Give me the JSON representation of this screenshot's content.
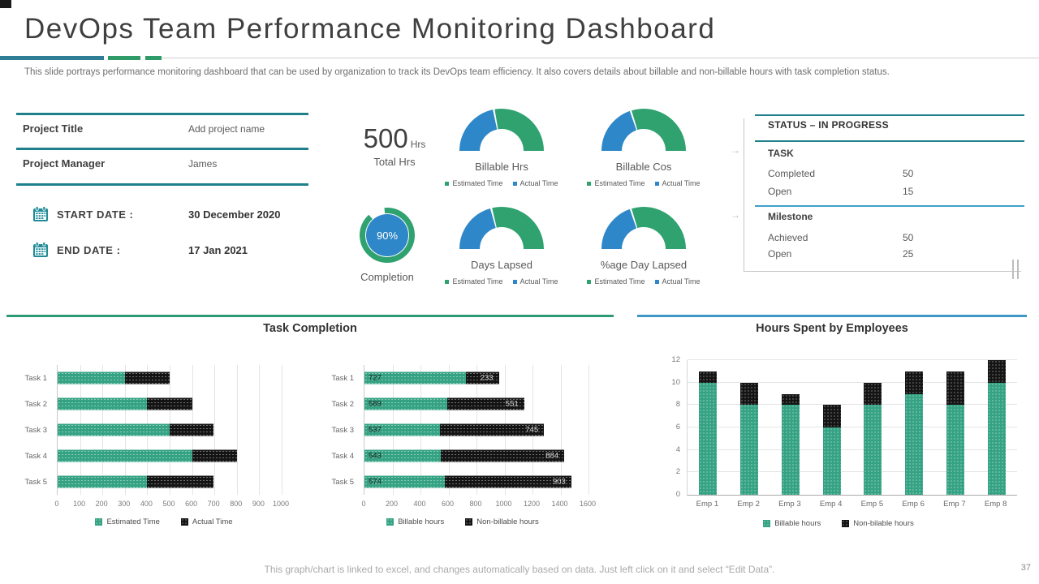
{
  "slide": {
    "title": "DevOps Team Performance Monitoring Dashboard",
    "subtitle": "This slide portrays performance  monitoring dashboard that can be used by organization to track its DevOps  team efficiency. It also covers details about billable and non-billable  hours with task completion status.",
    "footer_note": "This graph/chart is linked to excel, and changes automatically based on data. Just left click on it and select “Edit Data”.",
    "page_number": "37"
  },
  "colors": {
    "green": "#2fa26f",
    "blue": "#2e87c8",
    "teal_line": "#1f808c",
    "blue_line": "#3e9fc9",
    "bar_teal": "#35a383",
    "bar_black": "#141414"
  },
  "project_info": {
    "rows": [
      {
        "label": "Project Title",
        "value": "Add project name"
      },
      {
        "label": "Project Manager",
        "value": "James"
      }
    ],
    "dates": [
      {
        "label": "START DATE :",
        "value": "30 December 2020"
      },
      {
        "label": "END DATE :",
        "value": "17 Jan 2021"
      }
    ]
  },
  "totals": {
    "value": "500",
    "unit": "Hrs",
    "caption": "Total Hrs"
  },
  "completion_label": "Completion",
  "status_panel": {
    "title": "STATUS – IN PROGRESS",
    "sections": [
      {
        "heading": "TASK",
        "rows": [
          {
            "label": "Completed",
            "value": "50"
          },
          {
            "label": "Open",
            "value": "15"
          }
        ]
      },
      {
        "heading": "Milestone",
        "rows": [
          {
            "label": "Achieved",
            "value": "50"
          },
          {
            "label": "Open",
            "value": "25"
          }
        ]
      }
    ]
  },
  "section_titles": {
    "left": "Task Completion",
    "right": "Hours Spent by Employees"
  },
  "chart_data": [
    {
      "type": "half-donut",
      "label": "Billable Hrs",
      "segments": [
        {
          "name": "Actual Time",
          "pct": 44,
          "color": "blue"
        },
        {
          "name": "Estimated Time",
          "pct": 56,
          "color": "green"
        }
      ],
      "legend": [
        {
          "label": "Estimated Time",
          "color": "green"
        },
        {
          "label": "Actual Time",
          "color": "blue"
        }
      ]
    },
    {
      "type": "half-donut",
      "label": "Billable Cos",
      "segments": [
        {
          "name": "Actual Time",
          "pct": 40,
          "color": "blue"
        },
        {
          "name": "Estimated Time",
          "pct": 60,
          "color": "green"
        }
      ],
      "legend": [
        {
          "label": "Estimated Time",
          "color": "green"
        },
        {
          "label": "Actual Time",
          "color": "blue"
        }
      ]
    },
    {
      "type": "half-donut",
      "label": "Days Lapsed",
      "segments": [
        {
          "name": "Actual Time",
          "pct": 42,
          "color": "blue"
        },
        {
          "name": "Estimated Time",
          "pct": 58,
          "color": "green"
        }
      ],
      "legend": [
        {
          "label": "Estimated Time",
          "color": "green"
        },
        {
          "label": "Actual Time",
          "color": "blue"
        }
      ]
    },
    {
      "type": "half-donut",
      "label": "%age Day Lapsed",
      "segments": [
        {
          "name": "Actual Time",
          "pct": 40,
          "color": "blue"
        },
        {
          "name": "Estimated Time",
          "pct": 60,
          "color": "green"
        }
      ],
      "legend": [
        {
          "label": "Estimated Time",
          "color": "green"
        },
        {
          "label": "Actual Time",
          "color": "blue"
        }
      ]
    },
    {
      "type": "donut",
      "label": "Completion",
      "value": 90,
      "display": "90%"
    },
    {
      "type": "barh",
      "title": "Task Completion",
      "categories": [
        "Task 1",
        "Task 2",
        "Task 3",
        "Task 4",
        "Task 5"
      ],
      "series": [
        {
          "name": "Estimated Time",
          "color": "bar_teal",
          "values": [
            300,
            400,
            500,
            600,
            400
          ]
        },
        {
          "name": "Actual Time",
          "color": "bar_black",
          "values": [
            200,
            200,
            195,
            200,
            295
          ]
        }
      ],
      "xlim": [
        0,
        1000
      ],
      "xtick_step": 100,
      "show_labels": false,
      "legend": [
        {
          "label": "Estimated Time",
          "color": "bar_teal"
        },
        {
          "label": "Actual Time",
          "color": "bar_black"
        }
      ]
    },
    {
      "type": "barh",
      "title": "Billable vs Non-billable hours by task",
      "categories": [
        "Task 1",
        "Task 2",
        "Task 3",
        "Task 4",
        "Task 5"
      ],
      "series": [
        {
          "name": "Billable hours",
          "color": "bar_teal",
          "values": [
            727,
            589,
            537,
            543,
            574
          ]
        },
        {
          "name": "Non-billable hours",
          "color": "bar_black",
          "values": [
            233,
            551,
            745,
            884,
            903
          ]
        }
      ],
      "xlim": [
        0,
        1600
      ],
      "xtick_step": 200,
      "show_labels": true,
      "legend": [
        {
          "label": "Billable hours",
          "color": "bar_teal"
        },
        {
          "label": "Non-billable hours",
          "color": "bar_black"
        }
      ]
    },
    {
      "type": "column",
      "title": "Hours Spent by Employees",
      "categories": [
        "Emp 1",
        "Emp 2",
        "Emp 3",
        "Emp 4",
        "Emp 5",
        "Emp 6",
        "Emp 7",
        "Emp 8"
      ],
      "series": [
        {
          "name": "Billable hours",
          "color": "bar_teal",
          "values": [
            10,
            8,
            8,
            6,
            8,
            9,
            8,
            10
          ]
        },
        {
          "name": "Non-bilable hours",
          "color": "bar_black",
          "values": [
            1,
            2,
            1,
            2,
            2,
            2,
            3,
            2
          ]
        }
      ],
      "ylim": [
        0,
        12
      ],
      "ytick_step": 2,
      "legend": [
        {
          "label": "Billable hours",
          "color": "bar_teal"
        },
        {
          "label": "Non-bilable hours",
          "color": "bar_black"
        }
      ]
    }
  ]
}
